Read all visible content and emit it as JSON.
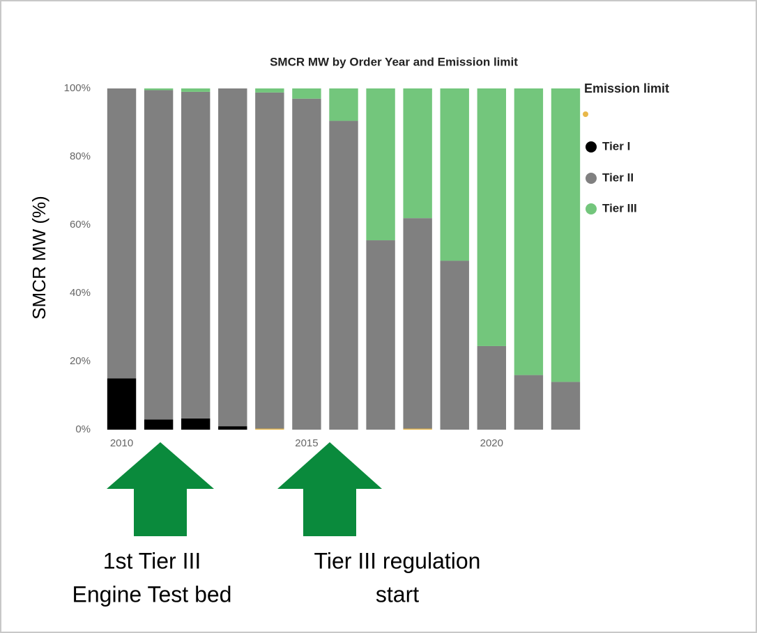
{
  "chart_data": {
    "type": "stacked-bar",
    "title": "SMCR MW by Order Year and Emission limit",
    "y_label": "SMCR MW (%)",
    "legend_title": "Emission limit",
    "x": [
      2010,
      2011,
      2012,
      2013,
      2014,
      2015,
      2016,
      2017,
      2018,
      2019,
      2020,
      2021,
      2022
    ],
    "xlim": [
      2009.5,
      2022.5
    ],
    "xticks": [
      2010,
      2015,
      2020
    ],
    "ylim": [
      0,
      100
    ],
    "yticks": [
      {
        "value": 0,
        "label": "0%"
      },
      {
        "value": 20,
        "label": "20%"
      },
      {
        "value": 40,
        "label": "40%"
      },
      {
        "value": 60,
        "label": "60%"
      },
      {
        "value": 80,
        "label": "80%"
      },
      {
        "value": 100,
        "label": "100%"
      }
    ],
    "grid": false,
    "legend": "right",
    "series": [
      {
        "name": null,
        "color": "#e8b84a",
        "values": [
          0,
          0,
          0,
          0,
          0.3,
          0,
          0,
          0,
          0.3,
          0,
          0,
          0,
          0
        ]
      },
      {
        "name": "Tier I",
        "color": "#000000",
        "values": [
          15,
          3,
          3.3,
          1,
          0,
          0,
          0,
          0,
          0,
          0,
          0,
          0,
          0
        ]
      },
      {
        "name": "Tier II",
        "color": "#808080",
        "values": [
          85,
          96.5,
          95.7,
          99,
          98.5,
          97,
          90.5,
          55.5,
          61.7,
          49.5,
          24.5,
          16,
          14
        ]
      },
      {
        "name": "Tier III",
        "color": "#73c67c",
        "values": [
          0,
          0.5,
          1,
          0,
          1.2,
          3,
          9.5,
          44.5,
          38,
          50.5,
          75.5,
          84,
          86
        ]
      }
    ],
    "annotations": [
      {
        "text": [
          "1st Tier III",
          "Engine Test bed"
        ]
      },
      {
        "text": [
          "Tier III regulation",
          "start"
        ]
      }
    ]
  }
}
